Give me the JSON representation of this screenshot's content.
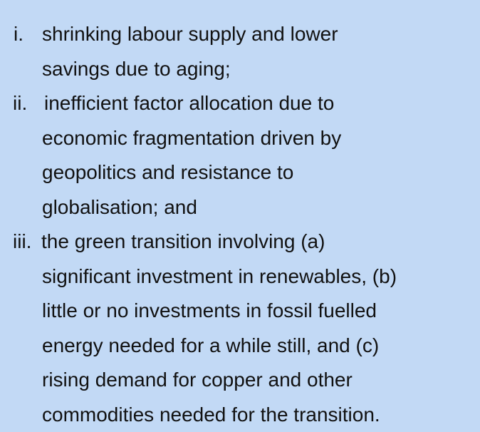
{
  "items": [
    {
      "marker": "i.",
      "lines": [
        "shrinking labour supply and lower",
        "savings due to aging;"
      ]
    },
    {
      "marker": "ii.",
      "lines": [
        "inefficient factor allocation due to",
        "economic fragmentation driven by",
        "geopolitics and resistance to",
        "globalisation; and"
      ]
    },
    {
      "marker": "iii.",
      "lines": [
        "the green transition involving (a)",
        "significant investment in renewables, (b)",
        "little or no investments in fossil fuelled",
        "energy needed for a while still, and (c)",
        "rising demand for copper and other",
        "commodities needed for the transition."
      ]
    }
  ]
}
